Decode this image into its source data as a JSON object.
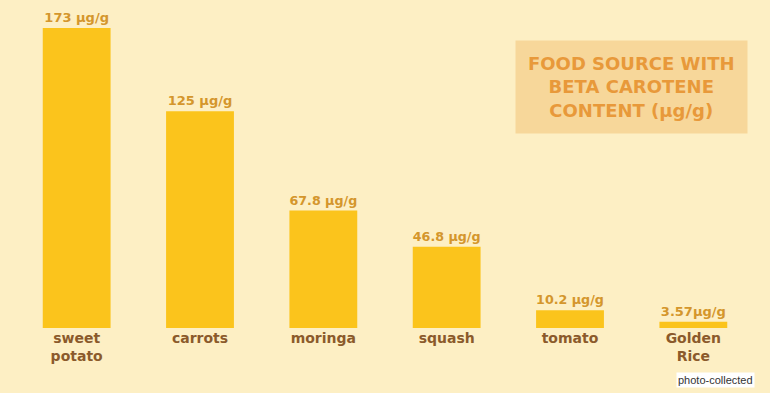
{
  "chart_data": {
    "type": "bar",
    "title": "FOOD SOURCE WITH BETA CAROTENE CONTENT (μg/g)",
    "categories": [
      "sweet potato",
      "carrots",
      "moringa",
      "squash",
      "tomato",
      "Golden Rice"
    ],
    "values": [
      173,
      125,
      67.8,
      46.8,
      10.2,
      3.57
    ],
    "value_labels": [
      "173 μg/g",
      "125 μg/g",
      "67.8 μg/g",
      "46.8 μg/g",
      "10.2 μg/g",
      "3.57μg/g"
    ],
    "color": "#fbc41c",
    "ylim": [
      0,
      173
    ],
    "grid": false,
    "data_labels": true,
    "tick_labels": "x",
    "annotations": [
      {
        "text": "photo-collected"
      }
    ]
  }
}
